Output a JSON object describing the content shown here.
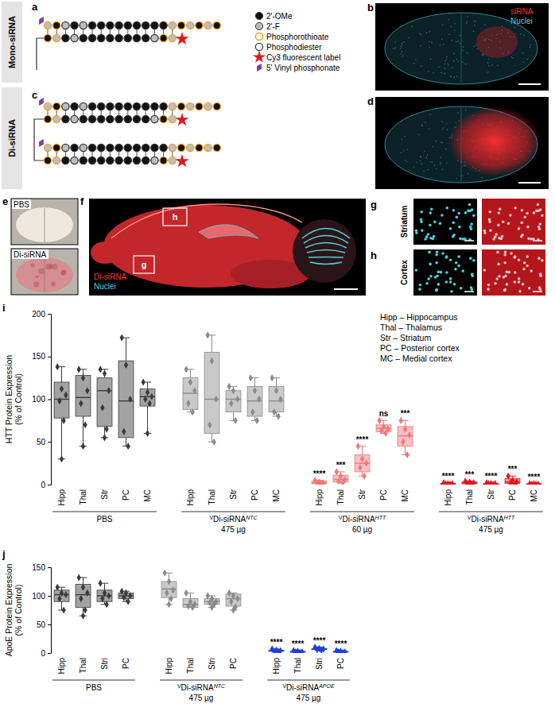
{
  "figure": {
    "panel_letters": [
      "a",
      "b",
      "c",
      "d",
      "e",
      "f",
      "g",
      "h",
      "i",
      "j"
    ],
    "row_labels": [
      "Mono-siRNA",
      "Di-siRNA"
    ],
    "chemistry_legend": [
      "2'-OMe",
      "2'-F",
      "Phosphorothioate",
      "Phosphodiester",
      "Cy3 fluorescent label",
      "5' Vinyl phosphonate"
    ],
    "panel_b_labels": [
      "siRNA",
      "Nuclei"
    ],
    "panel_e_labels": [
      "PBS",
      "Di-siRNA"
    ],
    "panel_f_labels": [
      "Di-siRNA",
      "Nuclei"
    ],
    "panel_f_insets": [
      "h",
      "g"
    ],
    "panel_g_label": "Striatum",
    "panel_h_label": "Cortex"
  },
  "chart_data": [
    {
      "type": "box",
      "y_label": [
        "HTT Protein Expression",
        "(% of Control)"
      ],
      "ylim": [
        0,
        200
      ],
      "yticks": [
        0,
        50,
        100,
        150,
        200
      ],
      "region_legend": [
        "Hipp – Hippocampus",
        "Thal – Thalamus",
        "Str – Striatum",
        "PC – Posterior cortex",
        "MC – Medial cortex"
      ],
      "groups": [
        {
          "label": {
            "name": "PBS"
          },
          "color": "#3a3a3a",
          "categories": [
            "Hipp",
            "Thal",
            "Str",
            "PC",
            "MC"
          ],
          "points": [
            [
              138,
              112,
              105,
              98,
              75,
              30
            ],
            [
              135,
              125,
              110,
              95,
              70,
              45
            ],
            [
              135,
              130,
              110,
              90,
              65,
              55
            ],
            [
              172,
              140,
              100,
              62,
              45
            ],
            [
              120,
              108,
              103,
              100,
              95,
              60
            ]
          ],
          "boxes": [
            {
              "min": 30,
              "q1": 78,
              "median": 100,
              "q3": 120,
              "max": 138
            },
            {
              "min": 45,
              "q1": 80,
              "median": 102,
              "q3": 128,
              "max": 135
            },
            {
              "min": 55,
              "q1": 68,
              "median": 110,
              "q3": 125,
              "max": 135
            },
            {
              "min": 45,
              "q1": 55,
              "median": 98,
              "q3": 145,
              "max": 172
            },
            {
              "min": 60,
              "q1": 92,
              "median": 103,
              "q3": 112,
              "max": 120
            }
          ]
        },
        {
          "label": {
            "prefix": "V",
            "name": "Di-siRNA",
            "superscript": "NTC",
            "dose": "475 µg"
          },
          "color": "#8a8a8a",
          "categories": [
            "Hipp",
            "Thal",
            "Str",
            "PC",
            "MC"
          ],
          "points": [
            [
              135,
              120,
              110,
              95,
              85
            ],
            [
              175,
              145,
              100,
              70,
              50
            ],
            [
              115,
              110,
              100,
              95,
              75
            ],
            [
              125,
              110,
              100,
              85,
              75
            ],
            [
              125,
              110,
              100,
              85,
              80
            ]
          ],
          "boxes": [
            {
              "min": 85,
              "q1": 88,
              "median": 107,
              "q3": 125,
              "max": 135
            },
            {
              "min": 50,
              "q1": 60,
              "median": 100,
              "q3": 155,
              "max": 175
            },
            {
              "min": 75,
              "q1": 85,
              "median": 100,
              "q3": 110,
              "max": 115
            },
            {
              "min": 75,
              "q1": 80,
              "median": 98,
              "q3": 115,
              "max": 125
            },
            {
              "min": 80,
              "q1": 85,
              "median": 98,
              "q3": 115,
              "max": 125
            }
          ]
        },
        {
          "label": {
            "prefix": "V",
            "name": "Di-siRNA",
            "superscript": "HTT",
            "dose": "60 µg"
          },
          "color": "#f07878",
          "categories": [
            "Hipp",
            "Thal",
            "Str",
            "PC",
            "MC"
          ],
          "points": [
            [
              5,
              3,
              2,
              2,
              1
            ],
            [
              15,
              10,
              6,
              4,
              2
            ],
            [
              45,
              30,
              25,
              20,
              10
            ],
            [
              75,
              68,
              65,
              63,
              60
            ],
            [
              75,
              65,
              58,
              50,
              35
            ]
          ],
          "boxes": [
            {
              "min": 1,
              "q1": 1,
              "median": 2,
              "q3": 4,
              "max": 5
            },
            {
              "min": 2,
              "q1": 3,
              "median": 6,
              "q3": 11,
              "max": 15
            },
            {
              "min": 10,
              "q1": 15,
              "median": 25,
              "q3": 35,
              "max": 45
            },
            {
              "min": 60,
              "q1": 62,
              "median": 66,
              "q3": 70,
              "max": 75
            },
            {
              "min": 35,
              "q1": 45,
              "median": 57,
              "q3": 68,
              "max": 75
            }
          ],
          "significance": [
            "****",
            "***",
            "****",
            "ns",
            "***"
          ]
        },
        {
          "label": {
            "prefix": "V",
            "name": "Di-siRNA",
            "superscript": "HTT",
            "dose": "475 µg"
          },
          "color": "#e0191f",
          "categories": [
            "Hipp",
            "Thal",
            "Str",
            "PC",
            "MC"
          ],
          "points": [
            [
              2,
              1,
              1,
              0.5,
              0.5
            ],
            [
              4,
              3,
              2,
              1,
              1
            ],
            [
              2,
              1,
              1,
              1,
              0.5
            ],
            [
              10,
              5,
              3,
              2,
              1
            ],
            [
              1,
              1,
              0.5,
              0.5,
              0.5
            ]
          ],
          "boxes": [
            {
              "min": 0.5,
              "q1": 0.5,
              "median": 1,
              "q3": 1.5,
              "max": 2
            },
            {
              "min": 1,
              "q1": 1,
              "median": 2,
              "q3": 3,
              "max": 4
            },
            {
              "min": 0.5,
              "q1": 0.5,
              "median": 1,
              "q3": 1.5,
              "max": 2
            },
            {
              "min": 1,
              "q1": 1.5,
              "median": 3,
              "q3": 7,
              "max": 10
            },
            {
              "min": 0.5,
              "q1": 0.5,
              "median": 0.5,
              "q3": 1,
              "max": 1
            }
          ],
          "significance": [
            "****",
            "***",
            "****",
            "***",
            "****"
          ]
        }
      ]
    },
    {
      "type": "box",
      "y_label": [
        "ApoE Protein Expression",
        "(% of Control)"
      ],
      "ylim": [
        0,
        150
      ],
      "yticks": [
        0,
        50,
        100,
        150
      ],
      "groups": [
        {
          "label": {
            "name": "PBS"
          },
          "color": "#3a3a3a",
          "categories": [
            "Hipp",
            "Thal",
            "Stri",
            "PC"
          ],
          "points": [
            [
              115,
              105,
              102,
              95,
              75
            ],
            [
              132,
              115,
              105,
              95,
              75,
              65
            ],
            [
              122,
              105,
              100,
              95,
              85
            ],
            [
              108,
              105,
              100,
              97,
              90
            ]
          ],
          "boxes": [
            {
              "min": 75,
              "q1": 90,
              "median": 102,
              "q3": 110,
              "max": 115
            },
            {
              "min": 65,
              "q1": 80,
              "median": 102,
              "q3": 120,
              "max": 132
            },
            {
              "min": 85,
              "q1": 90,
              "median": 100,
              "q3": 110,
              "max": 122
            },
            {
              "min": 90,
              "q1": 95,
              "median": 100,
              "q3": 105,
              "max": 108
            }
          ]
        },
        {
          "label": {
            "prefix": "V",
            "name": "Di-siRNA",
            "superscript": "NTC",
            "dose": "475 µg"
          },
          "color": "#8a8a8a",
          "categories": [
            "Hipp",
            "Thal",
            "Stri",
            "PC"
          ],
          "points": [
            [
              140,
              125,
              110,
              105,
              95,
              85
            ],
            [
              105,
              90,
              85,
              82,
              80
            ],
            [
              100,
              95,
              90,
              88,
              85,
              80
            ],
            [
              105,
              100,
              95,
              90,
              80,
              75
            ]
          ],
          "boxes": [
            {
              "min": 85,
              "q1": 97,
              "median": 112,
              "q3": 125,
              "max": 140
            },
            {
              "min": 80,
              "q1": 80,
              "median": 85,
              "q3": 95,
              "max": 105
            },
            {
              "min": 80,
              "q1": 85,
              "median": 90,
              "q3": 95,
              "max": 100
            },
            {
              "min": 75,
              "q1": 82,
              "median": 95,
              "q3": 103,
              "max": 105
            }
          ]
        },
        {
          "label": {
            "prefix": "V",
            "name": "Di-siRNA",
            "superscript": "APOE",
            "dose": "475 µg"
          },
          "color": "#1f3fd6",
          "categories": [
            "Hipp",
            "Thal",
            "Stri",
            "PC"
          ],
          "points": [
            [
              7,
              5,
              4,
              3,
              2
            ],
            [
              4,
              3,
              2,
              2,
              1
            ],
            [
              10,
              8,
              7,
              6,
              5
            ],
            [
              4,
              3,
              2,
              2,
              1
            ]
          ],
          "boxes": [
            {
              "min": 2,
              "q1": 3,
              "median": 4,
              "q3": 5,
              "max": 7
            },
            {
              "min": 1,
              "q1": 1.5,
              "median": 2,
              "q3": 3,
              "max": 4
            },
            {
              "min": 5,
              "q1": 6,
              "median": 7,
              "q3": 8,
              "max": 10
            },
            {
              "min": 1,
              "q1": 1.5,
              "median": 2,
              "q3": 3,
              "max": 4
            }
          ],
          "significance": [
            "****",
            "****",
            "****",
            "****"
          ]
        }
      ]
    }
  ]
}
